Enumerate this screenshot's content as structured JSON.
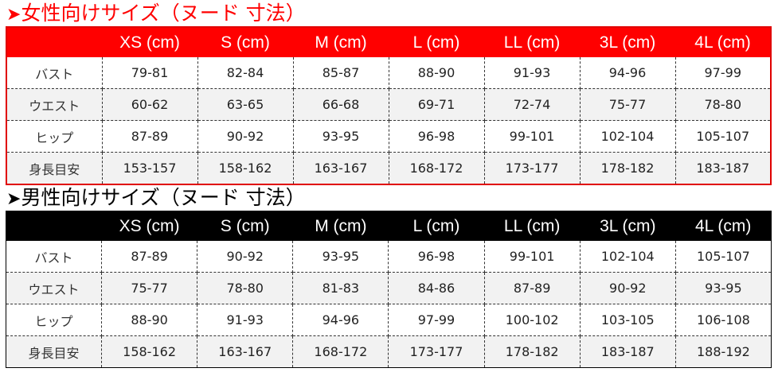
{
  "women": {
    "title": "女性向けサイズ（ヌード 寸法）",
    "color": "#ff0000",
    "headers": [
      "",
      "XS (cm)",
      "S (cm)",
      "M (cm)",
      "L (cm)",
      "LL (cm)",
      "3L (cm)",
      "4L (cm)"
    ],
    "rows": [
      [
        "バスト",
        "79-81",
        "82-84",
        "85-87",
        "88-90",
        "91-93",
        "94-96",
        "97-99"
      ],
      [
        "ウエスト",
        "60-62",
        "63-65",
        "66-68",
        "69-71",
        "72-74",
        "75-77",
        "78-80"
      ],
      [
        "ヒップ",
        "87-89",
        "90-92",
        "93-95",
        "96-98",
        "99-101",
        "102-104",
        "105-107"
      ],
      [
        "身長目安",
        "153-157",
        "158-162",
        "163-167",
        "168-172",
        "173-177",
        "178-182",
        "183-187"
      ]
    ]
  },
  "men": {
    "title": "男性向けサイズ（ヌード 寸法）",
    "color": "#000000",
    "headers": [
      "",
      "XS (cm)",
      "S (cm)",
      "M (cm)",
      "L (cm)",
      "LL (cm)",
      "3L (cm)",
      "4L (cm)"
    ],
    "rows": [
      [
        "バスト",
        "87-89",
        "90-92",
        "93-95",
        "96-98",
        "99-101",
        "102-104",
        "105-107"
      ],
      [
        "ウエスト",
        "75-77",
        "78-80",
        "81-83",
        "84-86",
        "87-89",
        "90-92",
        "93-95"
      ],
      [
        "ヒップ",
        "88-90",
        "91-93",
        "94-96",
        "97-99",
        "100-102",
        "103-105",
        "106-108"
      ],
      [
        "身長目安",
        "158-162",
        "163-167",
        "168-172",
        "173-177",
        "178-182",
        "183-187",
        "188-192"
      ]
    ]
  }
}
